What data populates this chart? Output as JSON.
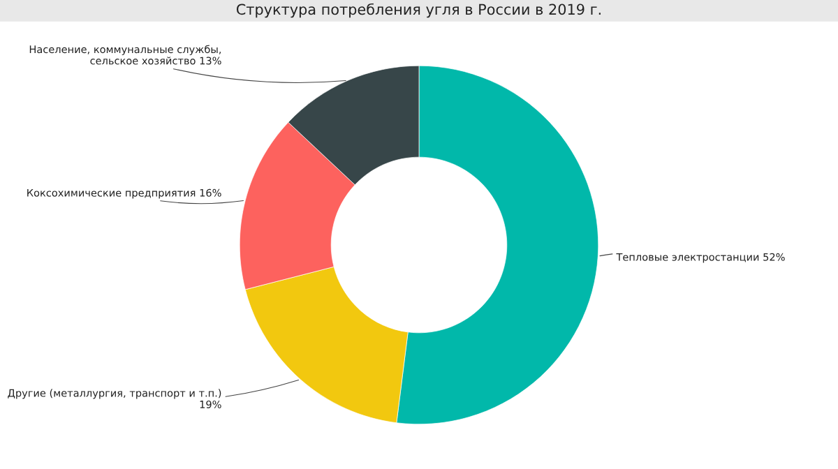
{
  "chart_data": {
    "type": "donut",
    "title": "Структура потребления угля в России в 2019 г.",
    "categories": [
      "Тепловые электростанции",
      "Другие (металлургия, транспорт и т.п.)",
      "Коксохимические предприятия",
      "Население, коммунальные службы, сельское хозяйство"
    ],
    "values": [
      52,
      19,
      16,
      13
    ],
    "colors": [
      "#01b8aa",
      "#f2c80f",
      "#fd625e",
      "#374649"
    ],
    "value_labels": [
      "52%",
      "19%",
      "16%",
      "13%"
    ]
  }
}
